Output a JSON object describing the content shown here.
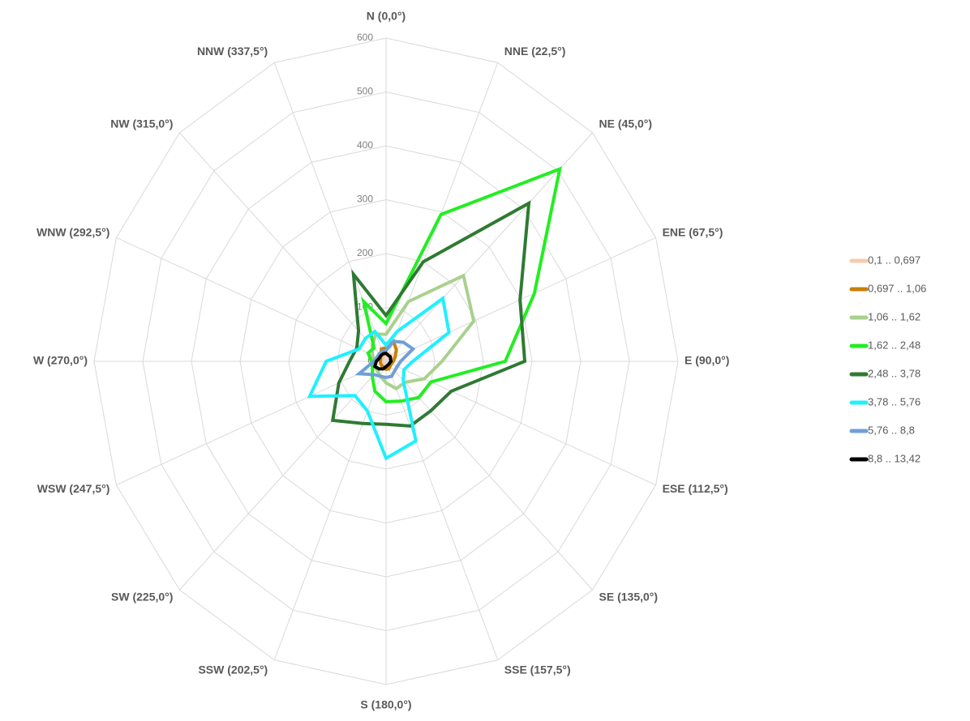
{
  "chart_data": {
    "type": "radar",
    "categories": [
      "N (0,0°)",
      "NNE (22,5°)",
      "NE (45,0°)",
      "ENE (67,5°)",
      "E (90,0°)",
      "ESE (112,5°)",
      "SE (135,0°)",
      "SSE (157,5°)",
      "S (180,0°)",
      "SSW (202,5°)",
      "SW (225,0°)",
      "WSW (247,5°)",
      "W (270,0°)",
      "WNW (292,5°)",
      "NW (315,0°)",
      "NNW (337,5°)"
    ],
    "ylim": [
      0,
      600
    ],
    "yticks": [
      0,
      100,
      200,
      300,
      400,
      500,
      600
    ],
    "grid": true,
    "legend": "right",
    "series": [
      {
        "name": "0,1 .. 0,697",
        "color": "#f8cbad",
        "values": [
          10,
          15,
          15,
          12,
          10,
          8,
          8,
          8,
          8,
          8,
          8,
          8,
          8,
          8,
          8,
          10
        ]
      },
      {
        "name": "0,697 .. 1,06",
        "color": "#c9800a",
        "values": [
          25,
          40,
          30,
          20,
          15,
          12,
          12,
          15,
          15,
          12,
          12,
          12,
          12,
          12,
          15,
          25
        ]
      },
      {
        "name": "1,06 .. 1,62",
        "color": "#a9d18e",
        "values": [
          50,
          120,
          225,
          195,
          115,
          85,
          55,
          55,
          40,
          30,
          25,
          25,
          25,
          30,
          40,
          55
        ]
      },
      {
        "name": "1,62 .. 2,48",
        "color": "#22ee22",
        "values": [
          70,
          295,
          505,
          330,
          245,
          100,
          95,
          80,
          75,
          60,
          40,
          30,
          30,
          40,
          35,
          120
        ]
      },
      {
        "name": "2,48 .. 3,78",
        "color": "#2f7a33",
        "values": [
          85,
          200,
          415,
          298,
          285,
          145,
          130,
          130,
          117,
          125,
          155,
          105,
          75,
          65,
          80,
          175
        ]
      },
      {
        "name": "3,78 .. 5,76",
        "color": "#1ff0ff",
        "values": [
          30,
          60,
          165,
          140,
          55,
          40,
          50,
          160,
          180,
          100,
          90,
          170,
          123,
          60,
          60,
          60
        ]
      },
      {
        "name": "5,76 .. 8,8",
        "color": "#6f9fd8",
        "values": [
          20,
          40,
          50,
          60,
          30,
          25,
          25,
          30,
          30,
          30,
          35,
          60,
          25,
          20,
          20,
          20
        ]
      },
      {
        "name": "8,8 .. 13,42",
        "color": "#000000",
        "values": [
          15,
          12,
          12,
          10,
          10,
          8,
          8,
          8,
          10,
          15,
          20,
          25,
          20,
          15,
          15,
          15
        ]
      }
    ]
  }
}
